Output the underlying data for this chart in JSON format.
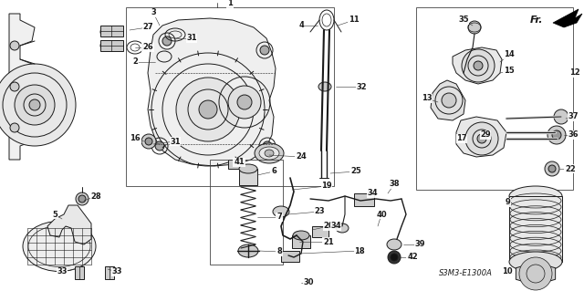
{
  "bg_color": "#ffffff",
  "diagram_color": "#1a1a1a",
  "label_code": "S3M3-E1300A",
  "fig_width": 6.4,
  "fig_height": 3.19,
  "dpi": 100
}
